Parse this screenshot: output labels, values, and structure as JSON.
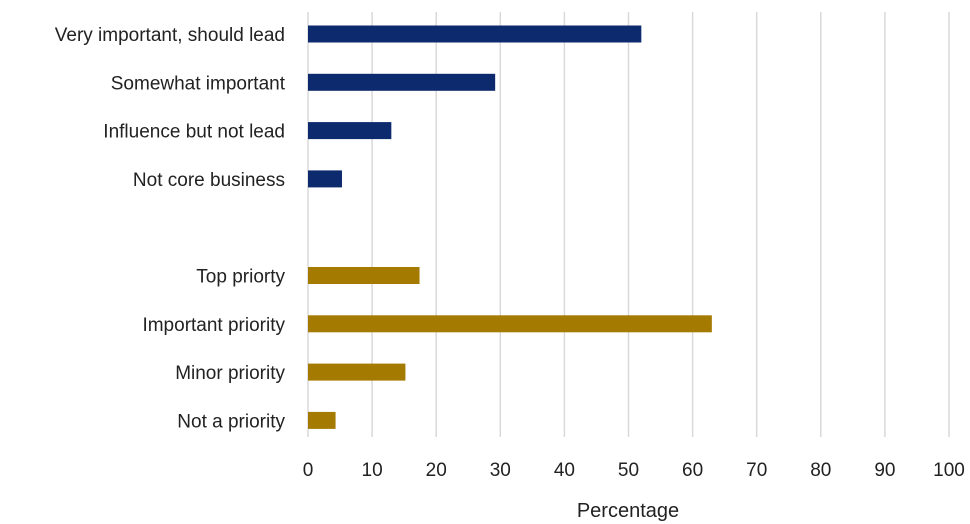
{
  "chart_data": {
    "type": "bar",
    "orientation": "horizontal",
    "categories": [
      "Very important, should lead",
      "Somewhat important ",
      "Influence but not lead",
      "Not core business",
      "",
      "Top priorty",
      "Important priority",
      "Minor priority",
      "Not a priority"
    ],
    "values": [
      52,
      29.2,
      13,
      5.3,
      null,
      17.4,
      63,
      15.2,
      4.3
    ],
    "bar_colors": [
      "#0d2a6e",
      "#0d2a6e",
      "#0d2a6e",
      "#0d2a6e",
      null,
      "#a47a00",
      "#a47a00",
      "#a47a00",
      "#a47a00"
    ],
    "title": "",
    "xlabel": "Percentage",
    "ylabel": "",
    "xlim": [
      0,
      100
    ],
    "xticks": [
      0,
      10,
      20,
      30,
      40,
      50,
      60,
      70,
      80,
      90,
      100
    ],
    "grid": "vertical",
    "legend": "none"
  }
}
